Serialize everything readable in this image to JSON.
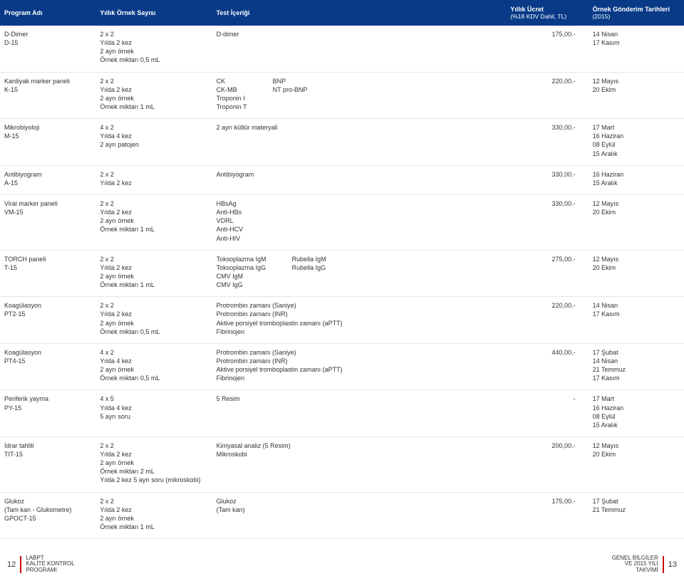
{
  "header": {
    "col1": "Program Adı",
    "col2": "Yıllık Örnek Sayısı",
    "col3": "Test İçeriği",
    "col4_line1": "Yıllık Ücret",
    "col4_line2": "(%18 KDV Dahil, TL)",
    "col5_line1": "Örnek Gönderim Tarihleri",
    "col5_line2": "(2015)"
  },
  "rows": [
    {
      "prog": "D-Dimer\nD-15",
      "samp": "2 x 2\nYılda 2 kez\n2 ayrı örnek\nÖrnek miktarı 0,5 mL",
      "test_a": "D-dimer",
      "test_b": "",
      "price": "175,00.-",
      "dates": "14 Nisan\n17 Kasım"
    },
    {
      "prog": "Kardiyak marker paneli\nK-15",
      "samp": "2 x 2\nYılda 2 kez\n2 ayrı örnek\nÖrnek miktarı 1 mL",
      "test_a": "CK\nCK-MB\nTroponin I\nTroponin T",
      "test_b": "BNP\nNT pro-BNP",
      "price": "220,00.-",
      "dates": "12 Mayıs\n20 Ekim"
    },
    {
      "prog": "Mikrobiyoloji\nM-15",
      "samp": "4 x 2\nYılda 4 kez\n2 ayrı patojen",
      "test_a": "2 ayrı kültür materyali",
      "test_b": "",
      "price": "330,00.-",
      "dates": "17 Mart\n16 Haziran\n08 Eylül\n15 Aralık"
    },
    {
      "prog": "Antibiyogram\nA-15",
      "samp": "2 x 2\nYılda 2 kez",
      "test_a": "Antibiyogram",
      "test_b": "",
      "price": "330,00.-",
      "dates": "16 Haziran\n15 Aralık"
    },
    {
      "prog": "Viral marker paneli\nVM-15",
      "samp": "2 x 2\nYılda 2 kez\n2 ayrı örnek\nÖrnek miktarı 1 mL",
      "test_a": "HBsAg\nAnti-HBs\nVDRL\nAnti-HCV\nAnti-HIV",
      "test_b": "",
      "price": "330,00.-",
      "dates": "12 Mayıs\n20 Ekim"
    },
    {
      "prog": "TORCH paneli\nT-15",
      "samp": "2 x 2\nYılda 2 kez\n2 ayrı örnek\nÖrnek miktarı 1 mL",
      "test_a": "Toksoplazma IgM\nToksoplazma IgG\nCMV IgM\nCMV IgG",
      "test_b": "Rubella IgM\nRubella IgG",
      "price": "275,00.-",
      "dates": "12 Mayıs\n20 Ekim"
    },
    {
      "prog": "Koagülasyon\nPT2-15",
      "samp": "2 x 2\nYılda 2 kez\n2 ayrı örnek\nÖrnek miktarı 0,5 mL",
      "test_a": "Protrombin zamanı (Saniye)\nProtrombin zamanı (INR)\nAktive porsiyel tromboplastin zamanı (aPTT)\nFibrinojen",
      "test_b": "",
      "price": "220,00.-",
      "dates": "14 Nisan\n17 Kasım"
    },
    {
      "prog": "Koagülasyon\nPT4-15",
      "samp": "4 x 2\nYılda 4 kez\n2 ayrı örnek\nÖrnek miktarı 0,5 mL",
      "test_a": "Protrombin zamanı (Saniye)\nProtrombin zamanı (INR)\nAktive porsiyel tromboplastin zamanı (aPTT)\nFibrinojen",
      "test_b": "",
      "price": "440,00.-",
      "dates": "17 Şubat\n14 Nisan\n21 Temmuz\n17 Kasım"
    },
    {
      "prog": "Periferik yayma\nPY-15",
      "samp": "4 x 5\nYılda 4 kez\n5 ayrı soru",
      "test_a": "5 Resim",
      "test_b": "",
      "price": "-",
      "dates": "17 Mart\n16 Haziran\n08 Eylül\n15 Aralık"
    },
    {
      "prog": "İdrar tahlili\nTIT-15",
      "samp": "2 x 2\nYılda 2 kez\n2 ayrı örnek\nÖrnek miktarı 2 mL\nYılda 2 kez 5 ayrı soru (mikroskobi)",
      "test_a": "Kimyasal analiz (5 Resim)\nMikroskobi",
      "test_b": "",
      "price": "200,00.-",
      "dates": "12 Mayıs\n20 Ekim"
    },
    {
      "prog": "Glukoz\n(Tam kan - Glukometre)\nGPOCT-15",
      "samp": "2 x 2\nYılda 2 kez\n2 ayrı örnek\nÖrnek miktarı 1 mL",
      "test_a": "Glukoz\n(Tam kan)",
      "test_b": "",
      "price": "175,00.-",
      "dates": "17 Şubat\n21 Temmuz"
    }
  ],
  "footer": {
    "left_page": "12",
    "left_text": "LABPT\nKALİTE KONTROL\nPROGRAMI",
    "right_text": "GENEL BİLGİLER\nVE 2015 YILI\nTAKVİMİ",
    "right_page": "13"
  },
  "style": {
    "header_bg": "#083a88",
    "header_fg": "#ffffff",
    "row_border": "#e6e6e6",
    "accent": "#c00000",
    "font_size_body": 9,
    "font_size_footer": 8
  }
}
